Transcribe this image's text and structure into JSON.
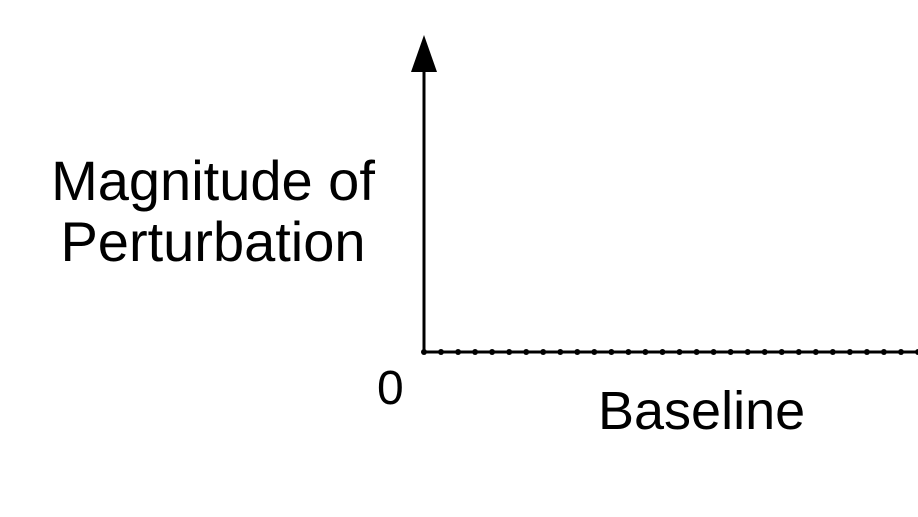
{
  "chart_data": {
    "type": "line",
    "title": "",
    "ylabel_lines": [
      "Magnitude of",
      "Perturbation"
    ],
    "xlabel": "Baseline",
    "y_tick_labels": [
      "0"
    ],
    "ylim": [
      0,
      1
    ],
    "series": [
      {
        "style": "dotted",
        "x": [
          0,
          1
        ],
        "y": [
          0,
          0
        ]
      }
    ],
    "grid": false,
    "legend": "none",
    "colors": {
      "axis": "#000000",
      "series": "#000000"
    }
  }
}
